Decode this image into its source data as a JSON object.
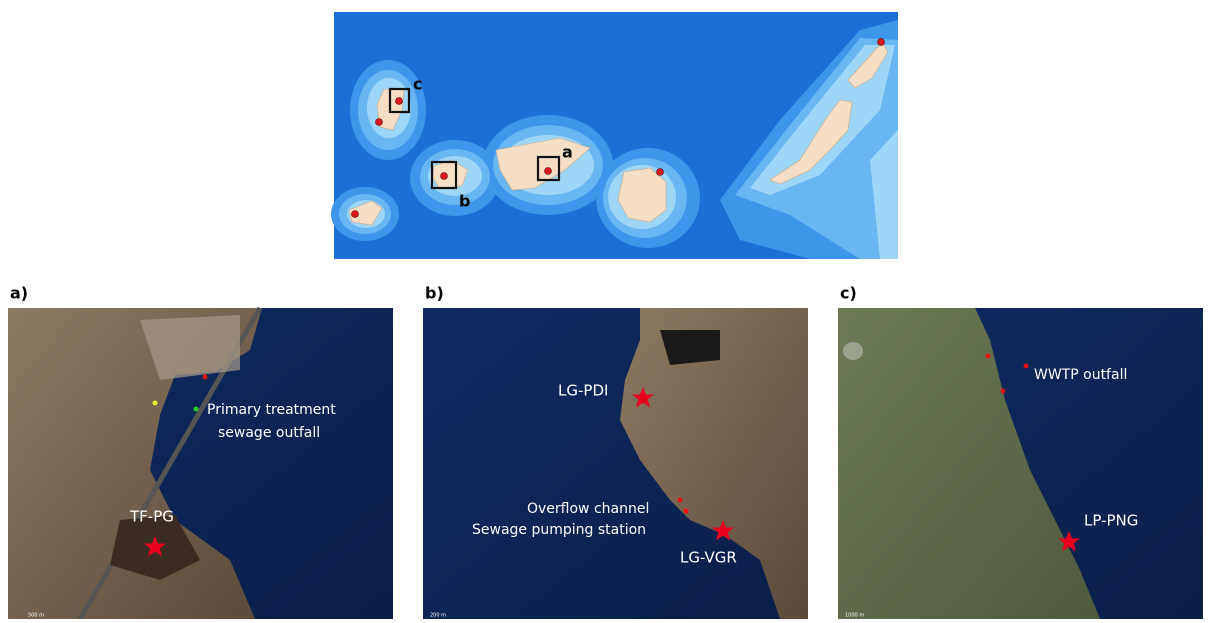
{
  "overview": {
    "box_labels": [
      "c",
      "a",
      "b"
    ]
  },
  "panels": [
    {
      "label": "a)",
      "sites": [
        "TF-PG"
      ],
      "annotations": [
        "Primary treatment",
        "sewage outfall"
      ],
      "scale": "500 m"
    },
    {
      "label": "b)",
      "sites": [
        "LG-PDI",
        "LG-VGR"
      ],
      "annotations": [
        "Overflow channel",
        "Sewage pumping station"
      ],
      "scale": "200 m"
    },
    {
      "label": "c)",
      "sites": [
        "LP-PNG"
      ],
      "annotations": [
        "WWTP outfall"
      ],
      "scale": "1000 m"
    }
  ]
}
